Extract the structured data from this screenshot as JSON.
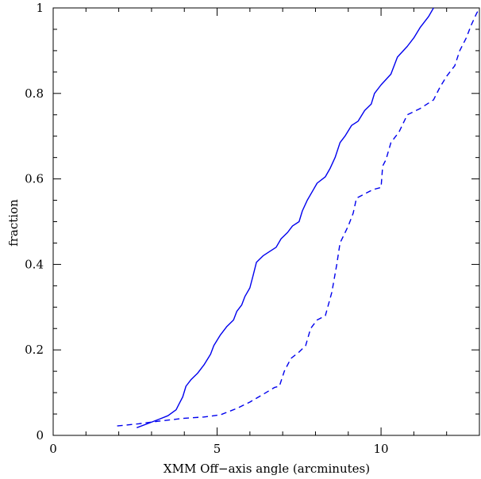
{
  "chart_data": {
    "type": "line",
    "xlabel": "XMM Off−axis angle (arcminutes)",
    "ylabel": "fraction",
    "xlim": [
      0,
      13
    ],
    "ylim": [
      0,
      1
    ],
    "x_ticks": [
      0,
      5,
      10
    ],
    "x_tick_labels": [
      "0",
      "5",
      "10"
    ],
    "y_ticks": [
      0,
      0.2,
      0.4,
      0.6,
      0.8,
      1
    ],
    "y_tick_labels": [
      "0",
      "0.2",
      "0.4",
      "0.6",
      "0.8",
      "1"
    ],
    "grid": false,
    "legend": "none",
    "series": [
      {
        "style": "solid",
        "color": "#0000ee",
        "points": [
          [
            2.55,
            0.018
          ],
          [
            2.9,
            0.028
          ],
          [
            3.2,
            0.037
          ],
          [
            3.5,
            0.046
          ],
          [
            3.75,
            0.06
          ],
          [
            3.85,
            0.075
          ],
          [
            3.95,
            0.09
          ],
          [
            4.05,
            0.115
          ],
          [
            4.2,
            0.13
          ],
          [
            4.4,
            0.145
          ],
          [
            4.6,
            0.165
          ],
          [
            4.8,
            0.19
          ],
          [
            4.9,
            0.21
          ],
          [
            5.1,
            0.235
          ],
          [
            5.3,
            0.255
          ],
          [
            5.5,
            0.27
          ],
          [
            5.6,
            0.29
          ],
          [
            5.75,
            0.305
          ],
          [
            5.85,
            0.325
          ],
          [
            6.0,
            0.345
          ],
          [
            6.1,
            0.375
          ],
          [
            6.2,
            0.405
          ],
          [
            6.4,
            0.42
          ],
          [
            6.6,
            0.43
          ],
          [
            6.8,
            0.44
          ],
          [
            6.95,
            0.46
          ],
          [
            7.15,
            0.475
          ],
          [
            7.3,
            0.49
          ],
          [
            7.5,
            0.5
          ],
          [
            7.6,
            0.525
          ],
          [
            7.75,
            0.55
          ],
          [
            7.9,
            0.57
          ],
          [
            8.05,
            0.59
          ],
          [
            8.3,
            0.605
          ],
          [
            8.45,
            0.625
          ],
          [
            8.6,
            0.65
          ],
          [
            8.75,
            0.685
          ],
          [
            8.9,
            0.7
          ],
          [
            9.1,
            0.725
          ],
          [
            9.3,
            0.735
          ],
          [
            9.5,
            0.76
          ],
          [
            9.7,
            0.775
          ],
          [
            9.8,
            0.8
          ],
          [
            10.0,
            0.82
          ],
          [
            10.3,
            0.845
          ],
          [
            10.5,
            0.885
          ],
          [
            10.8,
            0.91
          ],
          [
            11.0,
            0.93
          ],
          [
            11.2,
            0.955
          ],
          [
            11.45,
            0.98
          ],
          [
            11.6,
            1.0
          ]
        ]
      },
      {
        "style": "dashed",
        "color": "#0000ee",
        "points": [
          [
            1.95,
            0.022
          ],
          [
            2.6,
            0.027
          ],
          [
            3.2,
            0.033
          ],
          [
            4.0,
            0.04
          ],
          [
            4.6,
            0.043
          ],
          [
            5.1,
            0.048
          ],
          [
            5.6,
            0.063
          ],
          [
            6.0,
            0.078
          ],
          [
            6.4,
            0.096
          ],
          [
            6.75,
            0.112
          ],
          [
            6.9,
            0.115
          ],
          [
            7.05,
            0.15
          ],
          [
            7.25,
            0.18
          ],
          [
            7.5,
            0.195
          ],
          [
            7.7,
            0.21
          ],
          [
            7.85,
            0.25
          ],
          [
            8.05,
            0.27
          ],
          [
            8.3,
            0.28
          ],
          [
            8.5,
            0.335
          ],
          [
            8.65,
            0.4
          ],
          [
            8.75,
            0.45
          ],
          [
            9.0,
            0.49
          ],
          [
            9.15,
            0.52
          ],
          [
            9.25,
            0.555
          ],
          [
            9.5,
            0.565
          ],
          [
            9.75,
            0.575
          ],
          [
            10.0,
            0.58
          ],
          [
            10.05,
            0.63
          ],
          [
            10.15,
            0.645
          ],
          [
            10.3,
            0.685
          ],
          [
            10.55,
            0.71
          ],
          [
            10.8,
            0.75
          ],
          [
            11.2,
            0.765
          ],
          [
            11.6,
            0.785
          ],
          [
            11.8,
            0.815
          ],
          [
            12.0,
            0.84
          ],
          [
            12.25,
            0.865
          ],
          [
            12.4,
            0.9
          ],
          [
            12.6,
            0.93
          ],
          [
            12.75,
            0.96
          ],
          [
            12.9,
            0.985
          ],
          [
            13.0,
            1.0
          ]
        ]
      }
    ]
  }
}
